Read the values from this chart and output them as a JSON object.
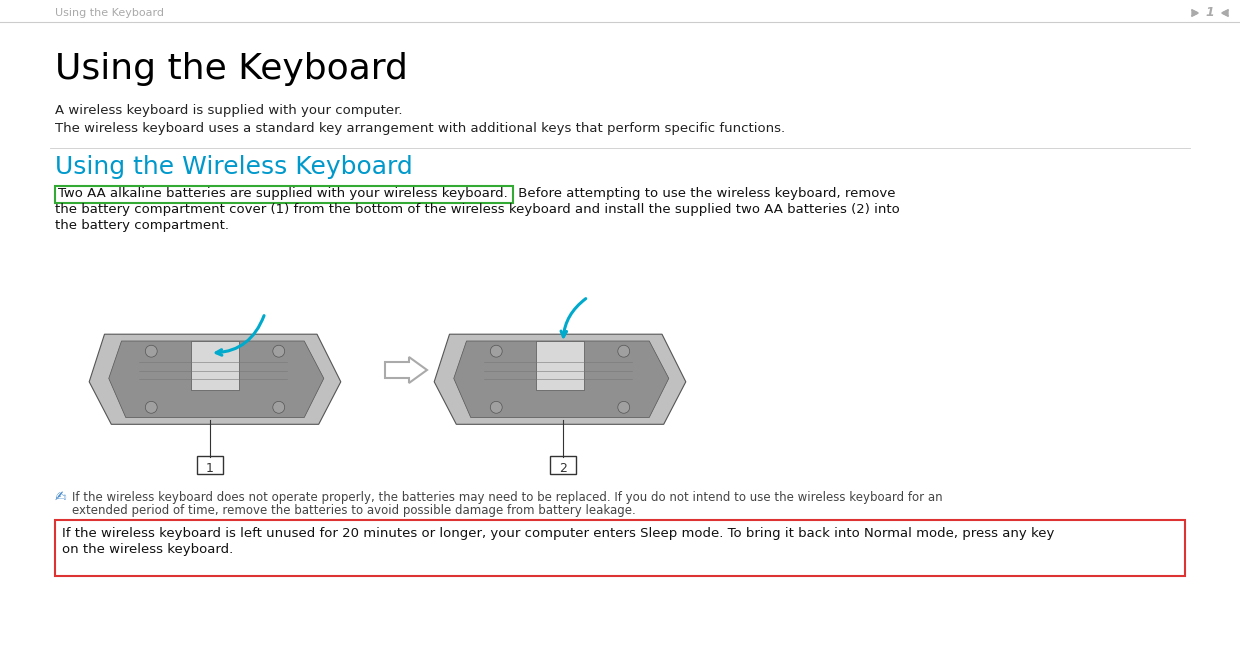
{
  "bg_color": "#ffffff",
  "header_text": "Using the Keyboard",
  "header_color": "#aaaaaa",
  "page_number": "1",
  "separator_color": "#cccccc",
  "title": "Using the Keyboard",
  "title_fontsize": 26,
  "title_color": "#000000",
  "subtitle1": "A wireless keyboard is supplied with your computer.",
  "subtitle2": "The wireless keyboard uses a standard key arrangement with additional keys that perform specific functions.",
  "section_title": "Using the Wireless Keyboard",
  "section_color": "#0099cc",
  "section_fontsize": 18,
  "highlighted_text": "Two AA alkaline batteries are supplied with your wireless keyboard.",
  "highlight_box_color": "#33aa33",
  "body_line2": "the battery compartment cover (1) from the bottom of the wireless keyboard and install the supplied two AA batteries (2) into",
  "body_line3": "the battery compartment.",
  "body_after_highlight": " Before attempting to use the wireless keyboard, remove",
  "note_icon_color": "#4488cc",
  "note_text_line1": "If the wireless keyboard does not operate properly, the batteries may need to be replaced. If you do not intend to use the wireless keyboard for an",
  "note_text_line2": "extended period of time, remove the batteries to avoid possible damage from battery leakage.",
  "warning_text_line1": "If the wireless keyboard is left unused for 20 minutes or longer, your computer enters Sleep mode. To bring it back into Normal mode, press any key",
  "warning_text_line2": "on the wireless keyboard.",
  "warning_box_color": "#dd3333",
  "text_fontsize": 9.5,
  "small_fontsize": 8.5
}
